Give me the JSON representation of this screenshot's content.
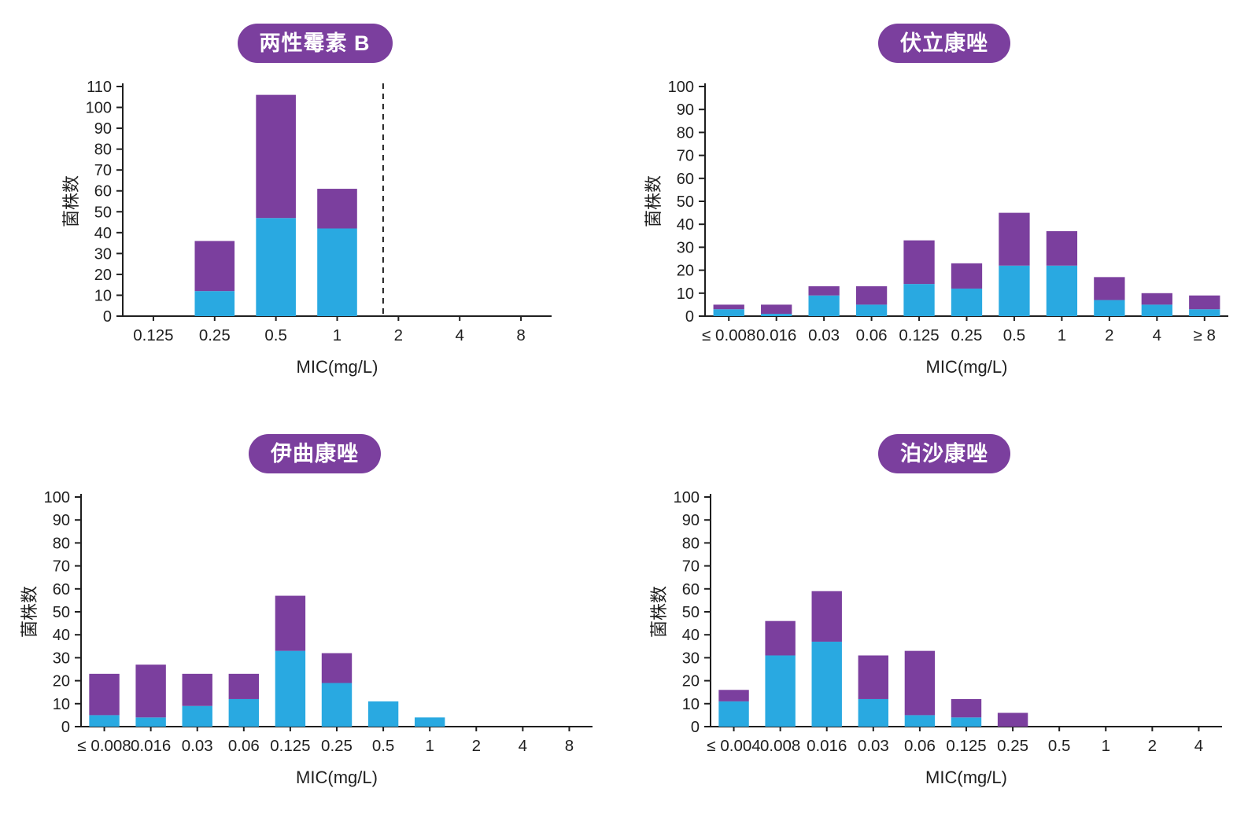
{
  "figure": {
    "background": "#ffffff"
  },
  "colors": {
    "bar_blue": "#29a9e1",
    "bar_purple": "#7b3f9e",
    "badge_background": "#7b3f9e",
    "badge_text": "#ffffff",
    "axis": "#1f1f1f"
  },
  "chart_data": [
    {
      "type": "bar",
      "stacked": true,
      "title": "两性霉素 B",
      "xlabel": "MIC(mg/L)",
      "ylabel": "菌株数",
      "ylim": [
        0,
        110
      ],
      "ystep": 10,
      "grid": false,
      "legend": "none",
      "categories": [
        "0.125",
        "0.25",
        "0.5",
        "1",
        "2",
        "4",
        "8"
      ],
      "series": [
        {
          "name": "blue-segment",
          "color_key": "bar_blue",
          "values": [
            0,
            12,
            47,
            42,
            0,
            0,
            0
          ]
        },
        {
          "name": "purple-segment",
          "color_key": "bar_purple",
          "values": [
            0,
            24,
            59,
            19,
            0,
            0,
            0
          ]
        }
      ],
      "totals": [
        0,
        36,
        106,
        61,
        0,
        0,
        0
      ],
      "breakpoint_dashed_line": {
        "between": [
          "1",
          "2"
        ],
        "slot_position": 4.25
      }
    },
    {
      "type": "bar",
      "stacked": true,
      "title": "伏立康唑",
      "xlabel": "MIC(mg/L)",
      "ylabel": "菌株数",
      "ylim": [
        0,
        100
      ],
      "ystep": 10,
      "grid": false,
      "legend": "none",
      "categories": [
        "≤ 0.008",
        "0.016",
        "0.03",
        "0.06",
        "0.125",
        "0.25",
        "0.5",
        "1",
        "2",
        "4",
        "≥ 8"
      ],
      "series": [
        {
          "name": "blue-segment",
          "color_key": "bar_blue",
          "values": [
            3,
            1,
            9,
            5,
            14,
            12,
            22,
            22,
            7,
            5,
            3
          ]
        },
        {
          "name": "purple-segment",
          "color_key": "bar_purple",
          "values": [
            2,
            4,
            4,
            8,
            19,
            11,
            23,
            15,
            10,
            5,
            6
          ]
        }
      ],
      "totals": [
        5,
        5,
        13,
        13,
        33,
        23,
        45,
        37,
        17,
        10,
        9
      ]
    },
    {
      "type": "bar",
      "stacked": true,
      "title": "伊曲康唑",
      "xlabel": "MIC(mg/L)",
      "ylabel": "菌株数",
      "ylim": [
        0,
        100
      ],
      "ystep": 10,
      "grid": false,
      "legend": "none",
      "categories": [
        "≤ 0.008",
        "0.016",
        "0.03",
        "0.06",
        "0.125",
        "0.25",
        "0.5",
        "1",
        "2",
        "4",
        "8"
      ],
      "series": [
        {
          "name": "blue-segment",
          "color_key": "bar_blue",
          "values": [
            5,
            4,
            9,
            12,
            33,
            19,
            11,
            4,
            0,
            0,
            0
          ]
        },
        {
          "name": "purple-segment",
          "color_key": "bar_purple",
          "values": [
            18,
            23,
            14,
            11,
            24,
            13,
            0,
            0,
            0,
            0,
            0
          ]
        }
      ],
      "totals": [
        23,
        27,
        23,
        23,
        57,
        32,
        11,
        4,
        0,
        0,
        0
      ]
    },
    {
      "type": "bar",
      "stacked": true,
      "title": "泊沙康唑",
      "xlabel": "MIC(mg/L)",
      "ylabel": "菌株数",
      "ylim": [
        0,
        100
      ],
      "ystep": 10,
      "grid": false,
      "legend": "none",
      "categories": [
        "≤ 0.004",
        "0.008",
        "0.016",
        "0.03",
        "0.06",
        "0.125",
        "0.25",
        "0.5",
        "1",
        "2",
        "4"
      ],
      "series": [
        {
          "name": "blue-segment",
          "color_key": "bar_blue",
          "values": [
            11,
            31,
            37,
            12,
            5,
            4,
            0,
            0,
            0,
            0,
            0
          ]
        },
        {
          "name": "purple-segment",
          "color_key": "bar_purple",
          "values": [
            5,
            15,
            22,
            19,
            28,
            8,
            6,
            0,
            0,
            0,
            0
          ]
        }
      ],
      "totals": [
        16,
        46,
        59,
        31,
        33,
        12,
        6,
        0,
        0,
        0,
        0
      ]
    }
  ]
}
